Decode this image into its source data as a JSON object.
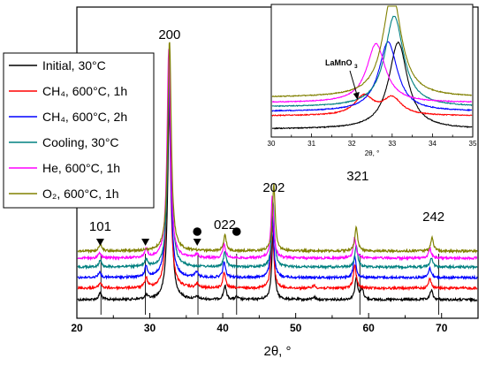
{
  "chart_data": [
    {
      "type": "line",
      "xlabel": "2θ, °",
      "ylabel": "",
      "xlim": [
        20,
        75
      ],
      "xticks": [
        20,
        30,
        40,
        50,
        60,
        70
      ],
      "grid": false,
      "legend_position": "top-left",
      "series": [
        {
          "name": "Initial, 30°C",
          "color": "#000000",
          "baseline": 0,
          "peaks": [
            [
              23.2,
              5
            ],
            [
              29.5,
              3
            ],
            [
              32.7,
              150
            ],
            [
              36.5,
              2
            ],
            [
              40.3,
              10
            ],
            [
              41.9,
              2
            ],
            [
              46.9,
              48
            ],
            [
              52.5,
              2
            ],
            [
              58.3,
              16
            ],
            [
              59.1,
              8
            ],
            [
              68.6,
              7
            ]
          ]
        },
        {
          "name": "CH₄, 600°C, 1h",
          "color": "#ff0000",
          "baseline": 0,
          "peaks": [
            [
              23.2,
              4
            ],
            [
              29.5,
              7
            ],
            [
              32.6,
              151
            ],
            [
              36.5,
              3
            ],
            [
              40.2,
              11
            ],
            [
              46.8,
              46
            ],
            [
              52.5,
              2
            ],
            [
              58.1,
              17
            ],
            [
              68.4,
              7
            ]
          ]
        },
        {
          "name": "CH₄, 600°C, 2h",
          "color": "#0000ff",
          "baseline": 0,
          "peaks": [
            [
              23.1,
              4
            ],
            [
              29.5,
              8
            ],
            [
              32.6,
              152
            ],
            [
              36.4,
              4
            ],
            [
              40.2,
              11
            ],
            [
              46.8,
              46
            ],
            [
              58.1,
              16
            ],
            [
              68.4,
              7
            ]
          ]
        },
        {
          "name": "Cooling, 30°C",
          "color": "#008080",
          "baseline": 0,
          "peaks": [
            [
              23.2,
              5
            ],
            [
              29.5,
              5
            ],
            [
              32.7,
              152
            ],
            [
              40.3,
              11
            ],
            [
              46.9,
              47
            ],
            [
              58.3,
              16
            ],
            [
              68.6,
              7
            ]
          ]
        },
        {
          "name": "He, 600°C, 1h",
          "color": "#ff00ff",
          "baseline": 0,
          "peaks": [
            [
              23.1,
              4
            ],
            [
              29.5,
              6
            ],
            [
              32.6,
              152
            ],
            [
              36.5,
              3
            ],
            [
              40.2,
              10
            ],
            [
              46.8,
              46
            ],
            [
              58.1,
              15
            ],
            [
              68.4,
              7
            ]
          ]
        },
        {
          "name": "O₂, 600°C, 1h",
          "color": "#808000",
          "baseline": 0,
          "peaks": [
            [
              23.2,
              5
            ],
            [
              32.7,
              154
            ],
            [
              40.3,
              12
            ],
            [
              47.0,
              49
            ],
            [
              58.3,
              18
            ],
            [
              68.7,
              10
            ]
          ]
        }
      ],
      "reflection_labels": [
        {
          "text": "101",
          "x": 23.2
        },
        {
          "text": "200",
          "x": 32.7
        },
        {
          "text": "022",
          "x": 40.3
        },
        {
          "text": "202",
          "x": 47.0
        },
        {
          "text": "321",
          "x": 58.5
        },
        {
          "text": "242",
          "x": 68.9
        }
      ],
      "triangle_markers": [
        23.2,
        29.4,
        36.5
      ],
      "circle_markers": [
        36.5,
        41.9
      ],
      "reference_lines": [
        23.3,
        29.4,
        36.6,
        41.9,
        58.8,
        69.6
      ]
    },
    {
      "type": "line",
      "xlabel": "2θ, °",
      "xlim": [
        30,
        35
      ],
      "xticks": [
        30,
        31,
        32,
        33,
        34,
        35
      ],
      "annotation": {
        "text": "LaMnO",
        "subscript": "3",
        "x": 32.1
      },
      "series": [
        {
          "name": "Initial, 30°C",
          "color": "#000000",
          "peaks": [
            [
              33.15,
              100
            ]
          ]
        },
        {
          "name": "CH₄, 600°C, 1h",
          "color": "#ff0000",
          "peaks": [
            [
              32.3,
              22
            ],
            [
              33.0,
              20
            ]
          ]
        },
        {
          "name": "CH₄, 600°C, 2h",
          "color": "#0000ff",
          "peaks": [
            [
              32.9,
              80
            ]
          ]
        },
        {
          "name": "Cooling, 30°C",
          "color": "#008080",
          "peaks": [
            [
              33.05,
              105
            ]
          ]
        },
        {
          "name": "He, 600°C, 1h",
          "color": "#ff00ff",
          "peaks": [
            [
              32.6,
              68
            ]
          ]
        },
        {
          "name": "O₂, 600°C, 1h",
          "color": "#808000",
          "peaks": [
            [
              33.0,
              120
            ]
          ]
        }
      ]
    }
  ]
}
